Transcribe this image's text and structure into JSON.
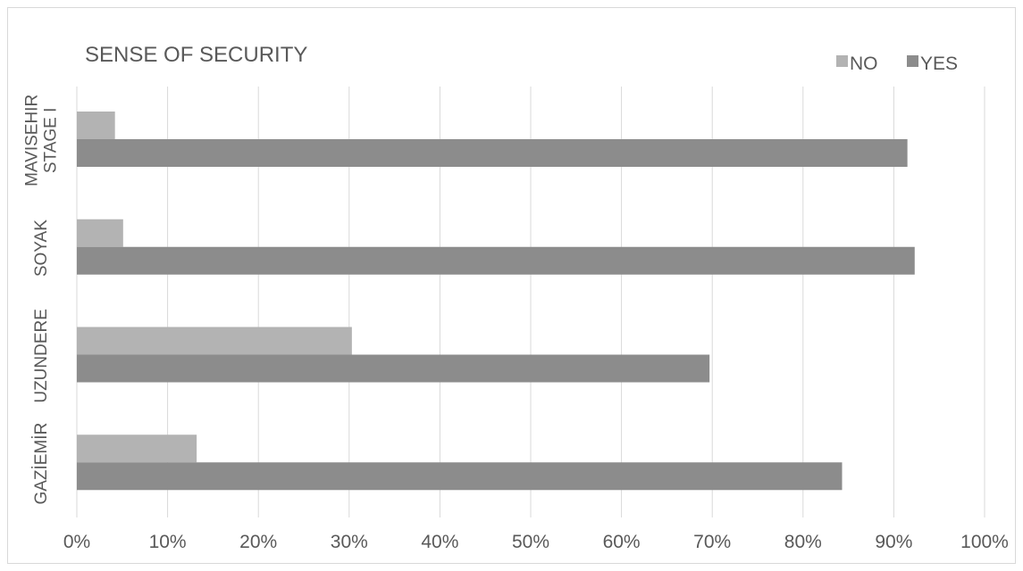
{
  "chart_data": {
    "type": "bar",
    "orientation": "horizontal",
    "title": "SENSE OF SECURITY",
    "xlabel": "",
    "ylabel": "",
    "xlim": [
      0,
      100
    ],
    "x_unit": "%",
    "x_ticks": [
      "0%",
      "10%",
      "20%",
      "30%",
      "40%",
      "50%",
      "60%",
      "70%",
      "80%",
      "90%",
      "100%"
    ],
    "categories": [
      [
        "MAVISEHIR",
        "STAGE I"
      ],
      [
        "SOYAK"
      ],
      [
        "UZUNDERE"
      ],
      [
        "GAZİEMİR"
      ]
    ],
    "series": [
      {
        "name": "NO",
        "color": "#b3b3b3",
        "values": [
          4.2,
          5.1,
          30.3,
          13.2
        ]
      },
      {
        "name": "YES",
        "color": "#8c8c8c",
        "values": [
          91.5,
          92.3,
          69.7,
          84.3
        ]
      }
    ],
    "legend": {
      "position": "top-right",
      "order": [
        "NO",
        "YES"
      ]
    },
    "grid": "vertical",
    "colors": {
      "grid": "#d9d9d9",
      "text": "#595959",
      "frame": "#d9d9d9"
    }
  }
}
